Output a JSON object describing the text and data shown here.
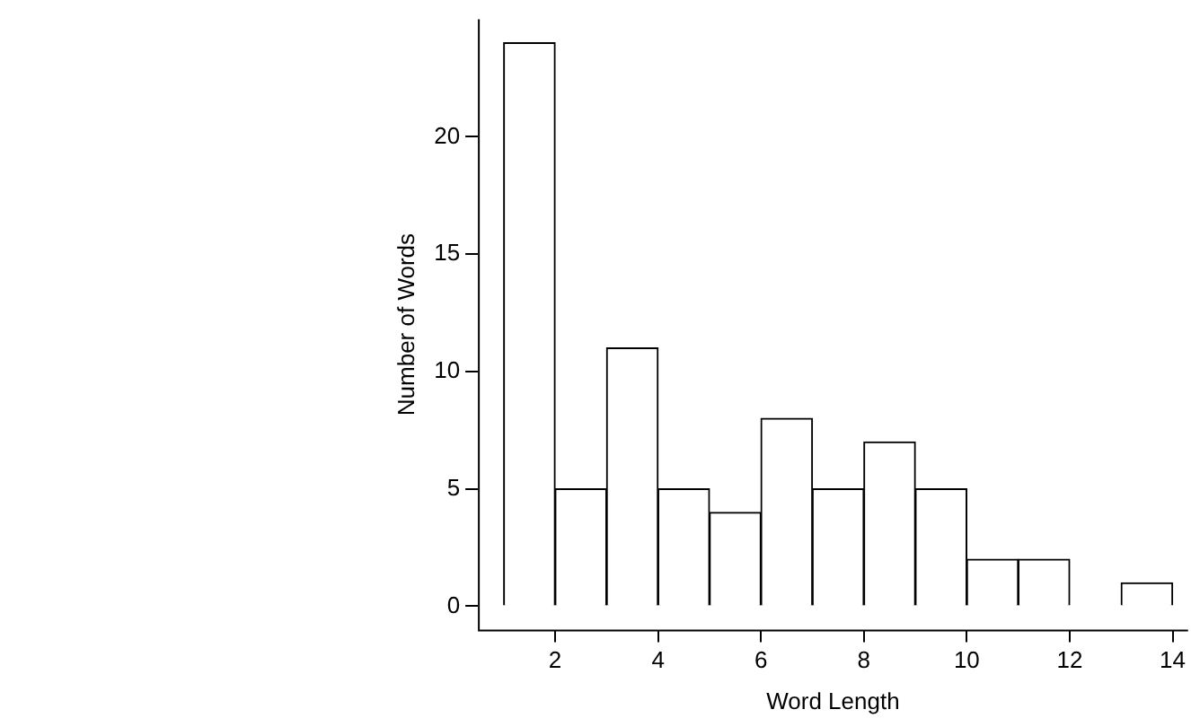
{
  "chart_data": {
    "type": "histogram",
    "xlabel": "Word Length",
    "ylabel": "Number of Words",
    "bins": [
      1,
      2,
      3,
      4,
      5,
      6,
      7,
      8,
      9,
      10,
      11,
      12,
      13,
      14
    ],
    "values": [
      24,
      5,
      11,
      5,
      4,
      8,
      5,
      7,
      5,
      2,
      2,
      0,
      1
    ],
    "color": "#ffffff",
    "xlim": [
      0.5,
      14.3
    ],
    "ylim": [
      -1,
      25
    ],
    "xticks": [
      2,
      4,
      6,
      8,
      10,
      12,
      14
    ],
    "yticks": [
      0,
      5,
      10,
      15,
      20
    ],
    "grid": false,
    "legend": false
  }
}
